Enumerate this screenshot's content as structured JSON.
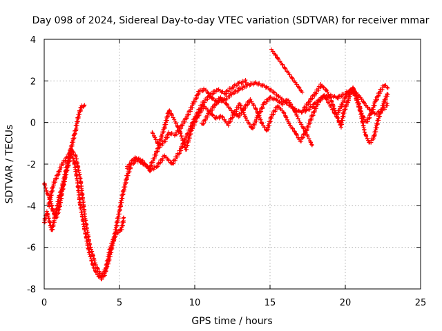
{
  "chart_data": {
    "type": "scatter",
    "title": "Day 098 of 2024, Sidereal Day-to-day VTEC variation (SDTVAR) for receiver mmar",
    "xlabel": "GPS time / hours",
    "ylabel": "SDTVAR / TECUs",
    "xlim": [
      0,
      25
    ],
    "ylim": [
      -8,
      4
    ],
    "x_ticks": [
      "0",
      "5",
      "10",
      "15",
      "20",
      "25"
    ],
    "y_ticks": [
      "-8",
      "-6",
      "-4",
      "-2",
      "0",
      "2",
      "4"
    ],
    "grid": true,
    "marker": "+",
    "color": "#ff0000",
    "series": [
      {
        "name": "trace-1",
        "points": [
          [
            0.0,
            -4.8
          ],
          [
            0.2,
            -4.3
          ],
          [
            0.5,
            -5.2
          ],
          [
            0.7,
            -4.6
          ],
          [
            1.0,
            -3.6
          ],
          [
            1.3,
            -2.8
          ],
          [
            1.6,
            -1.8
          ],
          [
            1.9,
            -0.9
          ],
          [
            2.1,
            -0.3
          ],
          [
            2.3,
            0.4
          ],
          [
            2.5,
            0.8
          ],
          [
            2.7,
            0.8
          ]
        ]
      },
      {
        "name": "trace-2",
        "points": [
          [
            0.0,
            -2.9
          ],
          [
            0.2,
            -3.4
          ],
          [
            0.4,
            -3.7
          ],
          [
            0.6,
            -4.3
          ],
          [
            0.8,
            -4.6
          ],
          [
            1.0,
            -4.1
          ],
          [
            1.2,
            -3.3
          ],
          [
            1.4,
            -2.6
          ],
          [
            1.6,
            -2.0
          ],
          [
            1.8,
            -1.5
          ],
          [
            2.0,
            -1.9
          ],
          [
            2.2,
            -2.8
          ],
          [
            2.4,
            -4.0
          ],
          [
            2.7,
            -5.2
          ],
          [
            3.0,
            -6.3
          ],
          [
            3.3,
            -7.0
          ],
          [
            3.6,
            -7.4
          ],
          [
            3.8,
            -7.5
          ],
          [
            4.0,
            -7.3
          ],
          [
            4.3,
            -6.6
          ],
          [
            4.6,
            -5.7
          ],
          [
            4.9,
            -4.6
          ],
          [
            5.2,
            -3.5
          ],
          [
            5.5,
            -2.6
          ],
          [
            5.8,
            -2.0
          ],
          [
            6.2,
            -1.8
          ],
          [
            6.6,
            -2.0
          ],
          [
            7.0,
            -2.2
          ],
          [
            7.3,
            -1.7
          ],
          [
            7.6,
            -1.2
          ],
          [
            8.0,
            -0.9
          ],
          [
            8.3,
            -0.5
          ],
          [
            8.7,
            -0.6
          ],
          [
            9.1,
            -0.2
          ],
          [
            9.5,
            0.3
          ],
          [
            9.9,
            0.9
          ],
          [
            10.3,
            1.5
          ],
          [
            10.7,
            1.6
          ],
          [
            11.1,
            1.2
          ],
          [
            11.5,
            1.0
          ],
          [
            12.0,
            1.1
          ],
          [
            12.5,
            1.4
          ],
          [
            13.0,
            1.6
          ],
          [
            13.5,
            1.8
          ],
          [
            14.0,
            1.9
          ],
          [
            14.5,
            1.8
          ],
          [
            15.0,
            1.6
          ],
          [
            15.5,
            1.3
          ],
          [
            16.0,
            1.0
          ],
          [
            16.5,
            0.7
          ],
          [
            17.0,
            0.5
          ],
          [
            17.5,
            0.6
          ],
          [
            18.0,
            0.9
          ],
          [
            18.5,
            1.2
          ],
          [
            19.0,
            1.3
          ],
          [
            19.5,
            1.2
          ],
          [
            20.0,
            1.4
          ],
          [
            20.5,
            1.6
          ],
          [
            21.0,
            1.2
          ],
          [
            21.5,
            0.7
          ],
          [
            22.0,
            0.4
          ],
          [
            22.5,
            0.6
          ],
          [
            22.8,
            0.9
          ]
        ]
      },
      {
        "name": "trace-3",
        "points": [
          [
            0.3,
            -4.0
          ],
          [
            0.6,
            -3.0
          ],
          [
            0.9,
            -2.5
          ],
          [
            1.2,
            -2.0
          ],
          [
            1.5,
            -1.7
          ],
          [
            1.8,
            -1.3
          ],
          [
            2.1,
            -1.6
          ],
          [
            2.4,
            -2.7
          ],
          [
            2.7,
            -4.5
          ],
          [
            3.0,
            -5.8
          ],
          [
            3.4,
            -6.8
          ],
          [
            3.8,
            -7.4
          ],
          [
            4.1,
            -7.0
          ],
          [
            4.4,
            -6.0
          ],
          [
            4.8,
            -5.3
          ],
          [
            5.1,
            -5.2
          ],
          [
            5.3,
            -4.6
          ]
        ]
      },
      {
        "name": "trace-4",
        "points": [
          [
            5.5,
            -2.2
          ],
          [
            6.0,
            -1.7
          ],
          [
            6.5,
            -1.8
          ],
          [
            7.0,
            -2.3
          ],
          [
            7.5,
            -2.1
          ],
          [
            8.0,
            -1.6
          ],
          [
            8.5,
            -2.0
          ],
          [
            9.0,
            -1.4
          ],
          [
            9.5,
            -0.6
          ],
          [
            10.0,
            0.2
          ],
          [
            10.5,
            0.9
          ],
          [
            11.0,
            1.3
          ],
          [
            11.5,
            1.6
          ],
          [
            12.0,
            1.4
          ],
          [
            12.5,
            1.7
          ],
          [
            13.0,
            1.9
          ],
          [
            13.4,
            2.0
          ]
        ]
      },
      {
        "name": "trace-5",
        "points": [
          [
            7.2,
            -0.5
          ],
          [
            7.6,
            -1.1
          ],
          [
            8.0,
            -0.2
          ],
          [
            8.3,
            0.6
          ],
          [
            8.6,
            0.2
          ],
          [
            9.0,
            -0.4
          ],
          [
            9.4,
            -1.3
          ],
          [
            9.8,
            -0.3
          ],
          [
            10.2,
            0.3
          ],
          [
            10.6,
            0.8
          ],
          [
            11.0,
            0.5
          ],
          [
            11.4,
            0.2
          ],
          [
            11.8,
            0.3
          ],
          [
            12.2,
            -0.1
          ],
          [
            12.6,
            0.4
          ],
          [
            13.0,
            0.9
          ],
          [
            13.4,
            0.2
          ],
          [
            13.8,
            -0.3
          ],
          [
            14.2,
            0.3
          ],
          [
            14.6,
            0.9
          ],
          [
            15.0,
            1.2
          ],
          [
            15.4,
            1.1
          ],
          [
            15.8,
            0.9
          ],
          [
            16.2,
            1.1
          ],
          [
            16.6,
            0.6
          ],
          [
            17.0,
            0.0
          ],
          [
            17.4,
            -0.5
          ],
          [
            17.8,
            -1.1
          ]
        ]
      },
      {
        "name": "trace-6",
        "points": [
          [
            10.5,
            -0.1
          ],
          [
            10.9,
            0.4
          ],
          [
            11.3,
            0.8
          ],
          [
            11.7,
            1.2
          ],
          [
            12.1,
            0.9
          ],
          [
            12.5,
            0.5
          ],
          [
            12.9,
            0.3
          ],
          [
            13.3,
            0.7
          ],
          [
            13.7,
            1.1
          ],
          [
            14.1,
            0.6
          ],
          [
            14.5,
            -0.1
          ],
          [
            14.8,
            -0.4
          ],
          [
            15.1,
            0.3
          ],
          [
            15.5,
            0.8
          ],
          [
            15.9,
            0.5
          ],
          [
            16.3,
            -0.1
          ],
          [
            16.7,
            -0.5
          ],
          [
            17.0,
            -0.9
          ],
          [
            17.4,
            -0.4
          ],
          [
            17.8,
            0.3
          ],
          [
            18.2,
            1.0
          ],
          [
            18.6,
            1.3
          ],
          [
            19.0,
            0.8
          ],
          [
            19.4,
            0.3
          ],
          [
            19.8,
            0.9
          ],
          [
            20.2,
            1.5
          ],
          [
            20.6,
            1.4
          ],
          [
            21.0,
            0.5
          ],
          [
            21.3,
            -0.5
          ],
          [
            21.6,
            -1.0
          ],
          [
            21.9,
            -0.7
          ],
          [
            22.2,
            0.2
          ],
          [
            22.6,
            1.0
          ],
          [
            22.8,
            1.4
          ]
        ]
      },
      {
        "name": "trace-7",
        "points": [
          [
            15.1,
            3.5
          ],
          [
            15.4,
            3.2
          ],
          [
            15.7,
            2.9
          ],
          [
            16.0,
            2.6
          ],
          [
            16.3,
            2.3
          ],
          [
            16.6,
            2.0
          ],
          [
            16.9,
            1.7
          ],
          [
            17.1,
            1.5
          ]
        ]
      },
      {
        "name": "trace-8",
        "points": [
          [
            17.2,
            0.6
          ],
          [
            17.6,
            1.0
          ],
          [
            18.0,
            1.4
          ],
          [
            18.4,
            1.8
          ],
          [
            18.8,
            1.5
          ],
          [
            19.1,
            1.0
          ],
          [
            19.4,
            0.4
          ],
          [
            19.7,
            -0.2
          ],
          [
            19.9,
            0.5
          ],
          [
            20.2,
            1.1
          ],
          [
            20.5,
            1.7
          ],
          [
            20.8,
            1.2
          ],
          [
            21.1,
            0.4
          ],
          [
            21.4,
            0.0
          ],
          [
            21.7,
            0.4
          ],
          [
            22.0,
            1.0
          ],
          [
            22.3,
            1.5
          ],
          [
            22.6,
            1.8
          ],
          [
            22.8,
            1.7
          ]
        ]
      }
    ]
  }
}
